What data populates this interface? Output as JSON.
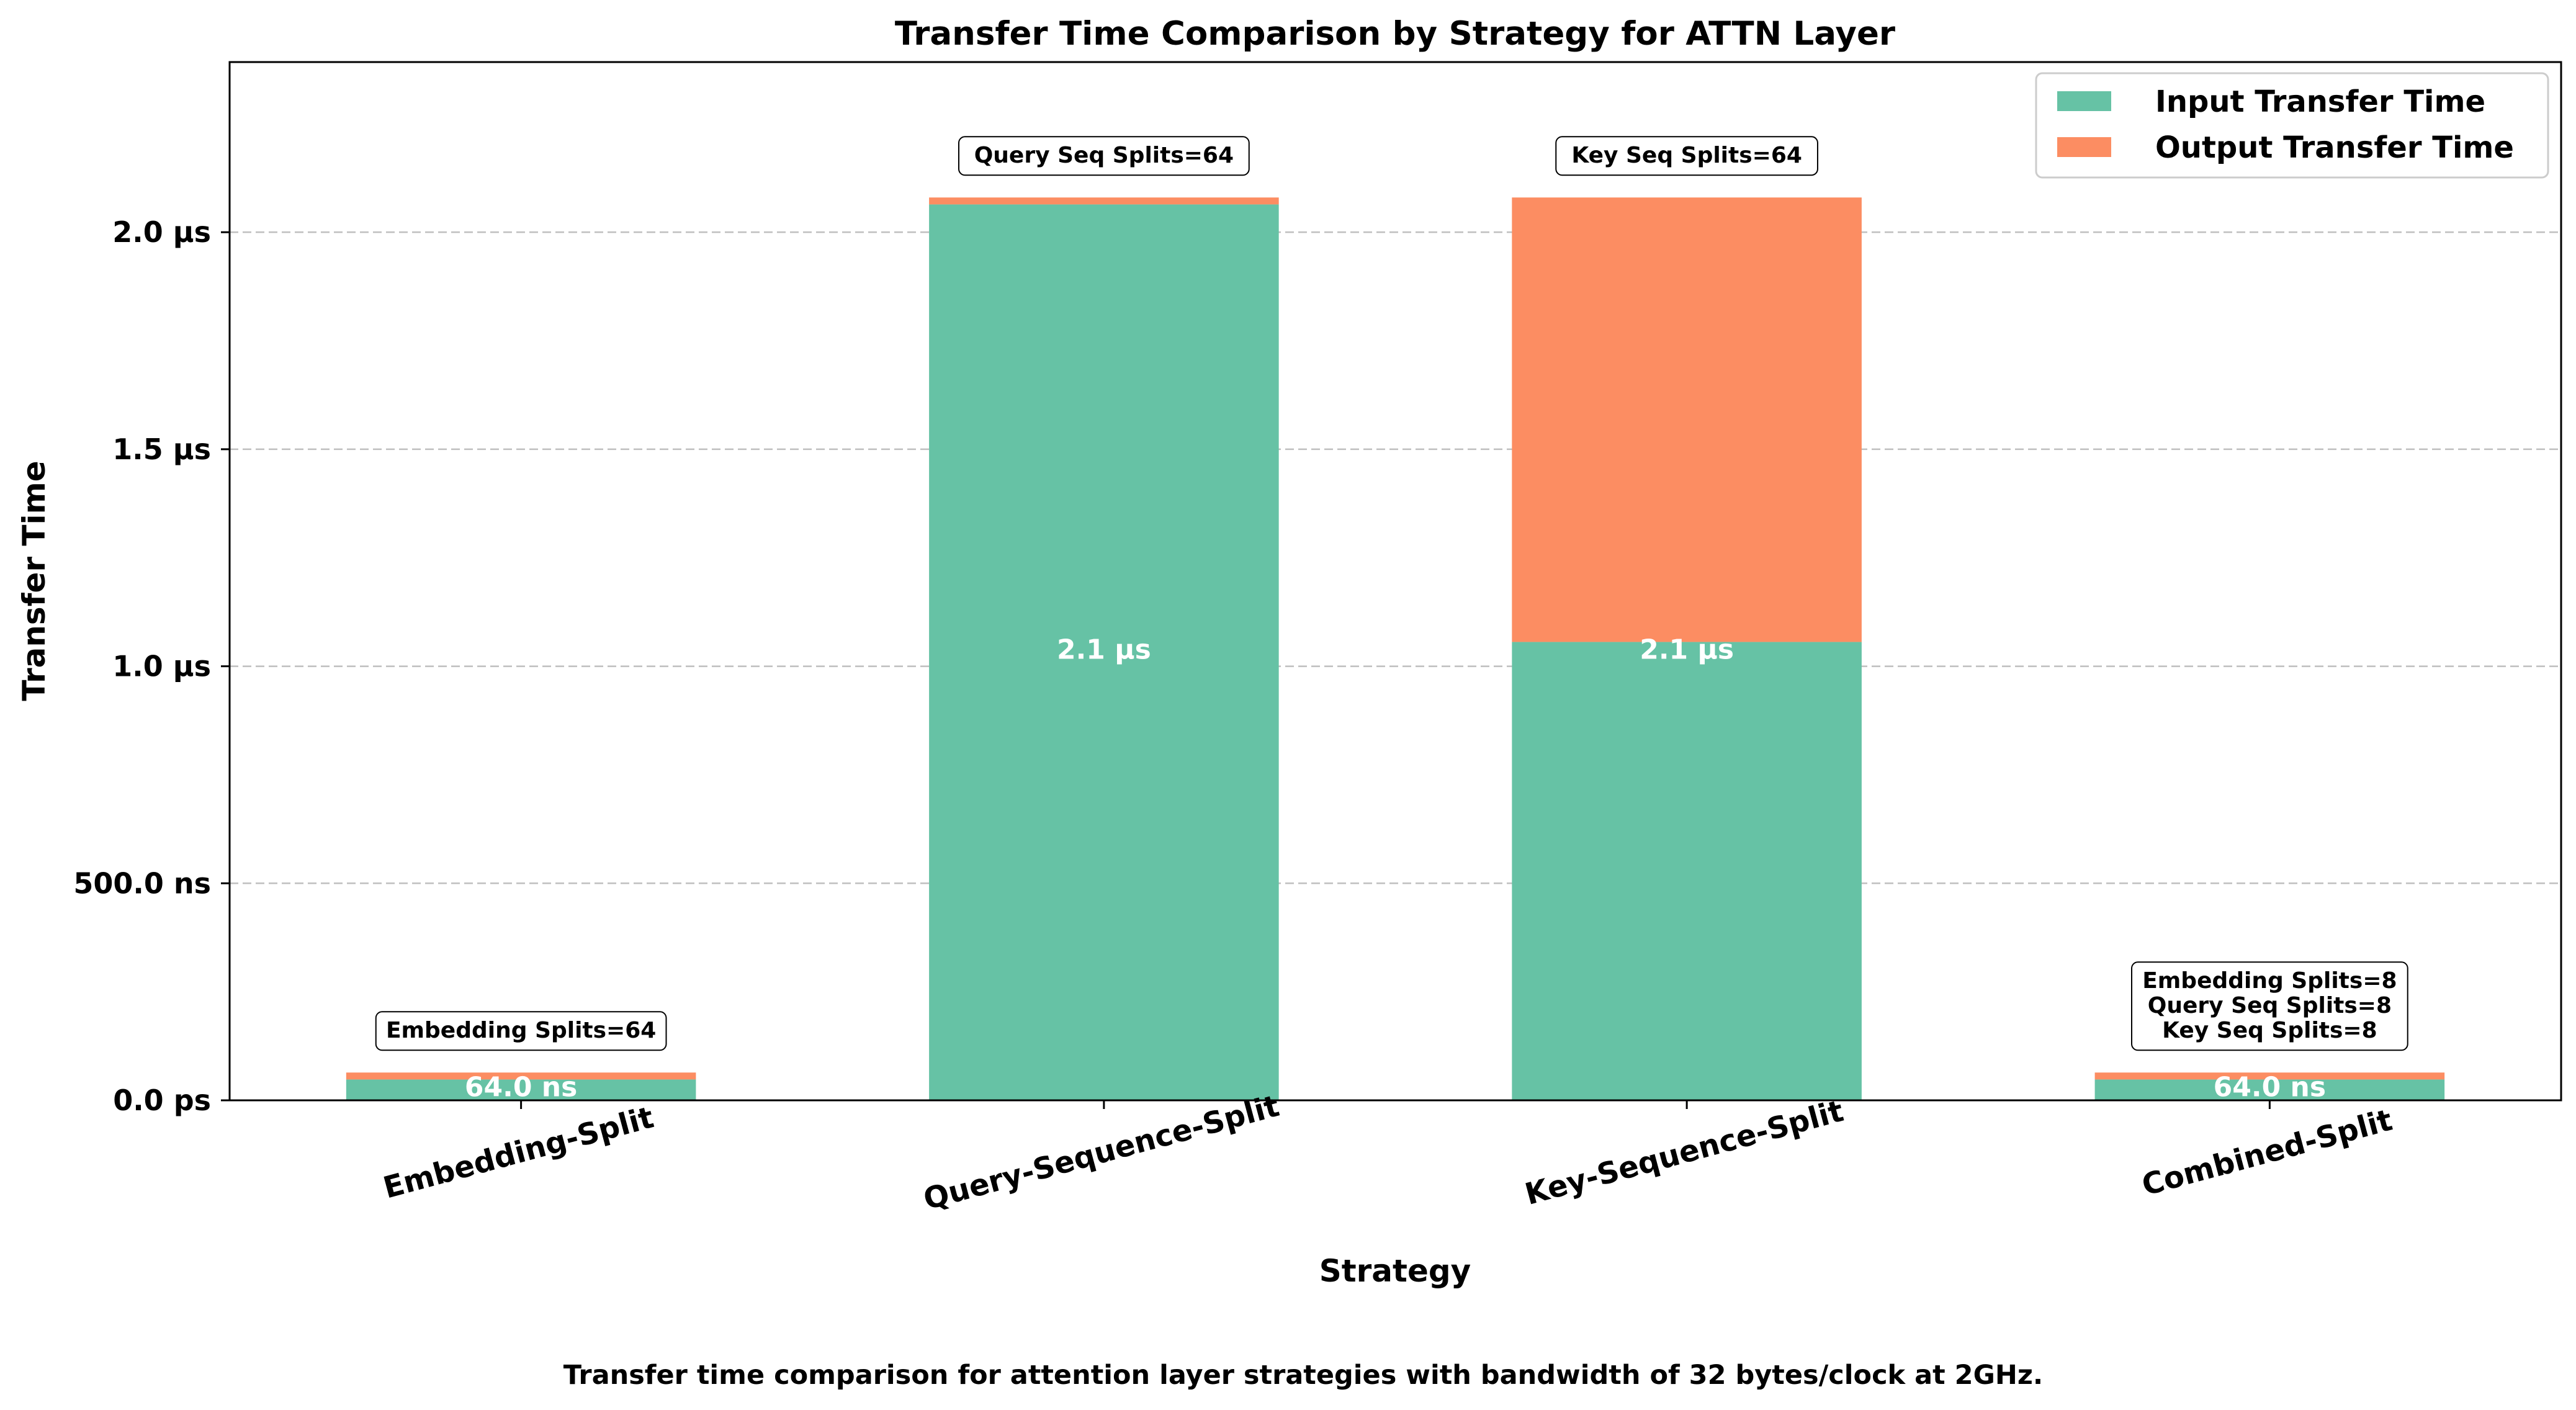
{
  "chart_data": {
    "type": "bar",
    "stacked": true,
    "title": "Transfer Time Comparison by Strategy for ATTN Layer",
    "xlabel": "Strategy",
    "ylabel": "Transfer Time",
    "caption": "Transfer time comparison for attention layer strategies with bandwidth of 32 bytes/clock at 2GHz.",
    "categories": [
      "Embedding-Split",
      "Query-Sequence-Split",
      "Key-Sequence-Split",
      "Combined-Split"
    ],
    "series": [
      {
        "name": "Input Transfer Time",
        "color": "#66c2a5",
        "values_ns": [
          48,
          2064,
          1056,
          48
        ]
      },
      {
        "name": "Output Transfer Time",
        "color": "#fc8d62",
        "values_ns": [
          16,
          16,
          1024,
          16
        ]
      }
    ],
    "total_labels": [
      "64.0 ns",
      "2.1 µs",
      "2.1 µs",
      "64.0 ns"
    ],
    "split_annotations": [
      [
        "Embedding Splits=64"
      ],
      [
        "Query Seq Splits=64"
      ],
      [
        "Key Seq Splits=64"
      ],
      [
        "Embedding Splits=8",
        "Query Seq Splits=8",
        "Key Seq Splits=8"
      ]
    ],
    "y_ticks": [
      {
        "value_ns": 0,
        "label": "0.0 ps"
      },
      {
        "value_ns": 500,
        "label": "500.0 ns"
      },
      {
        "value_ns": 1000,
        "label": "1.0 µs"
      },
      {
        "value_ns": 1500,
        "label": "1.5 µs"
      },
      {
        "value_ns": 2000,
        "label": "2.0 µs"
      }
    ],
    "ylim_ns": [
      0,
      2392
    ],
    "grid": "y-dashed",
    "legend_position": "top-right"
  }
}
